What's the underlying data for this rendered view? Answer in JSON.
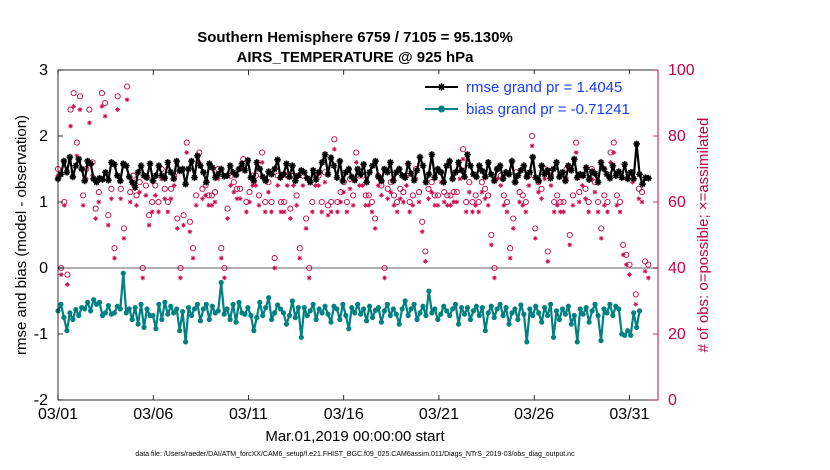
{
  "chart_data": {
    "type": "line",
    "title": "Southern Hemisphere 6759 / 7105 = 95.130%",
    "subtitle": "AIRS_TEMPERATURE @ 925 hPa",
    "xlabel": "Mar.01,2019 00:00:00 start",
    "ylabel": "rmse and bias (model - observation)",
    "y2label": "# of obs: o=possible; ×=assimilated",
    "footnote": "data file: /Users/raeder/DAI/ATM_forcXX/CAM6_setup/f.e21.FHIST_BGC.f09_025.CAM6assim.011/Diags_NTrS_2019-03/obs_diag_output.nc",
    "xlim": [
      0,
      31.5
    ],
    "ylim": [
      -2,
      3
    ],
    "y2lim": [
      0,
      100
    ],
    "zero_line": 0,
    "xtick_labels": [
      "03/01",
      "03/06",
      "03/11",
      "03/16",
      "03/21",
      "03/26",
      "03/31"
    ],
    "xticks": [
      0,
      5,
      10,
      15,
      20,
      25,
      30
    ],
    "yticks": [
      -2,
      -1,
      0,
      1,
      2,
      3
    ],
    "y2ticks": [
      0,
      20,
      40,
      60,
      80,
      100
    ],
    "colors": {
      "rmse": "#000000",
      "bias": "#008080",
      "obs": "#c8004a",
      "zero": "#b0b0b0",
      "legend_text": "#1a3cff"
    },
    "legend": [
      {
        "name": "rmse grand pr = 1.4045",
        "series": "rmse"
      },
      {
        "name": "bias grand pr = -0.71241",
        "series": "bias"
      }
    ],
    "legend_location": "top-right",
    "rmse": [
      1.35,
      1.42,
      1.62,
      1.45,
      1.68,
      1.38,
      1.55,
      1.65,
      1.5,
      1.32,
      1.62,
      1.58,
      1.35,
      1.3,
      1.36,
      1.34,
      1.45,
      1.33,
      1.6,
      1.57,
      1.4,
      1.32,
      1.58,
      1.55,
      1.38,
      1.3,
      1.22,
      1.45,
      1.55,
      1.4,
      1.37,
      1.58,
      1.32,
      1.4,
      1.55,
      1.4,
      1.36,
      1.6,
      1.45,
      1.35,
      1.62,
      1.47,
      1.5,
      1.27,
      1.5,
      1.62,
      1.37,
      1.7,
      1.55,
      1.45,
      1.3,
      1.58,
      1.52,
      1.37,
      1.42,
      1.5,
      1.39,
      1.4,
      1.55,
      1.45,
      1.41,
      1.5,
      1.58,
      1.48,
      1.63,
      1.37,
      1.32,
      1.6,
      1.5,
      1.38,
      1.32,
      1.46,
      1.42,
      1.5,
      1.64,
      1.37,
      1.42,
      1.58,
      1.38,
      1.55,
      1.32,
      1.4,
      1.48,
      1.45,
      1.36,
      1.3,
      1.48,
      1.34,
      1.45,
      1.6,
      1.72,
      1.42,
      1.67,
      1.55,
      1.37,
      1.62,
      1.32,
      1.45,
      1.5,
      1.38,
      1.33,
      1.5,
      1.42,
      1.57,
      1.3,
      1.45,
      1.55,
      1.62,
      1.38,
      1.32,
      1.5,
      1.45,
      1.6,
      1.32,
      1.45,
      1.5,
      1.4,
      1.37,
      1.58,
      1.43,
      1.33,
      1.48,
      1.68,
      1.55,
      1.3,
      1.42,
      1.72,
      1.37,
      1.5,
      1.45,
      1.3,
      1.55,
      1.62,
      1.35,
      1.45,
      1.6,
      1.48,
      1.38,
      1.72,
      1.55,
      1.42,
      1.38,
      1.55,
      1.47,
      1.38,
      1.6,
      1.42,
      1.32,
      1.5,
      1.55,
      1.35,
      1.45,
      1.42,
      1.62,
      1.3,
      1.4,
      1.48,
      1.55,
      1.38,
      1.45,
      1.68,
      1.37,
      1.32,
      1.55,
      1.42,
      1.48,
      1.36,
      1.5,
      1.6,
      1.38,
      1.45,
      1.32,
      1.55,
      1.48,
      1.65,
      1.37,
      1.42,
      1.4,
      1.52,
      1.34,
      1.46,
      1.43,
      1.3,
      1.6,
      1.5,
      1.42,
      1.36,
      1.55,
      1.4,
      1.46,
      1.37,
      1.57,
      1.35,
      1.45,
      1.35,
      1.88,
      1.42,
      1.27,
      1.37,
      1.36
    ],
    "bias": [
      -0.65,
      -0.55,
      -0.75,
      -0.95,
      -0.68,
      -0.78,
      -0.63,
      -0.72,
      -0.6,
      -0.62,
      -0.52,
      -0.65,
      -0.48,
      -0.55,
      -0.52,
      -0.72,
      -0.68,
      -0.57,
      -0.7,
      -0.68,
      -0.58,
      -0.62,
      -0.08,
      -0.68,
      -0.62,
      -0.78,
      -0.6,
      -0.85,
      -0.55,
      -0.9,
      -0.62,
      -0.72,
      -0.72,
      -0.92,
      -0.55,
      -0.78,
      -0.52,
      -0.7,
      -0.58,
      -0.68,
      -0.62,
      -0.95,
      -0.66,
      -1.12,
      -0.6,
      -0.72,
      -0.62,
      -0.55,
      -0.8,
      -0.62,
      -0.55,
      -0.78,
      -0.58,
      -0.68,
      -0.65,
      -0.22,
      -0.7,
      -0.62,
      -0.78,
      -0.55,
      -0.82,
      -0.52,
      -0.68,
      -0.7,
      -0.6,
      -0.72,
      -0.95,
      -0.75,
      -0.52,
      -0.72,
      -0.6,
      -0.45,
      -0.78,
      -0.68,
      -0.56,
      -0.62,
      -0.68,
      -0.85,
      -0.72,
      -0.5,
      -0.75,
      -0.6,
      -1.05,
      -0.6,
      -0.72,
      -0.65,
      -0.55,
      -0.78,
      -0.62,
      -0.68,
      -0.58,
      -0.7,
      -0.82,
      -0.58,
      -0.62,
      -0.78,
      -0.55,
      -0.72,
      -0.92,
      -0.6,
      -0.68,
      -0.55,
      -0.7,
      -0.62,
      -0.8,
      -0.58,
      -0.75,
      -0.64,
      -0.6,
      -0.82,
      -0.65,
      -0.55,
      -0.72,
      -0.62,
      -0.7,
      -0.85,
      -0.62,
      -0.5,
      -0.72,
      -0.62,
      -0.55,
      -0.78,
      -0.68,
      -0.58,
      -0.72,
      -0.35,
      -0.68,
      -0.62,
      -0.78,
      -0.7,
      -0.58,
      -0.65,
      -0.72,
      -0.62,
      -0.55,
      -0.85,
      -0.6,
      -0.7,
      -0.6,
      -0.78,
      -0.65,
      -0.58,
      -0.72,
      -0.6,
      -0.95,
      -0.68,
      -0.58,
      -0.75,
      -0.62,
      -0.55,
      -0.72,
      -0.6,
      -0.85,
      -0.68,
      -0.62,
      -0.78,
      -0.56,
      -0.7,
      -1.12,
      -0.62,
      -0.72,
      -0.58,
      -0.68,
      -0.82,
      -0.6,
      -0.72,
      -0.55,
      -1.05,
      -0.65,
      -0.78,
      -0.62,
      -0.7,
      -0.58,
      -0.85,
      -0.72,
      -1.12,
      -0.62,
      -0.7,
      -0.6,
      -0.82,
      -0.65,
      -0.55,
      -0.72,
      -1.1,
      -0.62,
      -0.68,
      -0.55,
      -0.72,
      -0.58,
      -0.62,
      -1.0,
      -1.02,
      -0.95,
      -1.02,
      -0.68,
      -0.9,
      -0.65
    ],
    "obs_possible": [
      70,
      40,
      60,
      38,
      88,
      93,
      78,
      92,
      62,
      70,
      88,
      72,
      58,
      63,
      93,
      90,
      56,
      64,
      46,
      92,
      64,
      52,
      95,
      63,
      68,
      62,
      66,
      40,
      65,
      56,
      60,
      65,
      60,
      70,
      64,
      60,
      64,
      68,
      55,
      40,
      56,
      78,
      54,
      46,
      62,
      75,
      64,
      65,
      62,
      62,
      63,
      70,
      46,
      40,
      58,
      68,
      66,
      64,
      64,
      73,
      60,
      63,
      68,
      68,
      62,
      75,
      60,
      66,
      60,
      43,
      68,
      60,
      60,
      68,
      58,
      68,
      62,
      46,
      68,
      55,
      40,
      60,
      68,
      68,
      60,
      69,
      59,
      60,
      79,
      60,
      63,
      66,
      60,
      67,
      62,
      75,
      68,
      68,
      62,
      62,
      60,
      55,
      68,
      65,
      40,
      64,
      66,
      62,
      60,
      64,
      63,
      68,
      60,
      62,
      70,
      63,
      54,
      45,
      64,
      66,
      62,
      62,
      69,
      63,
      62,
      62,
      63,
      63,
      70,
      76,
      60,
      66,
      60,
      62,
      60,
      66,
      64,
      62,
      50,
      40,
      70,
      68,
      62,
      60,
      46,
      55,
      69,
      63,
      62,
      60,
      68,
      80,
      52,
      66,
      64,
      70,
      45,
      68,
      60,
      62,
      60,
      60,
      70,
      50,
      62,
      78,
      63,
      68,
      64,
      60,
      70,
      66,
      60,
      52,
      62,
      60,
      75,
      78,
      62,
      60,
      47,
      44,
      41,
      69,
      32,
      64,
      63,
      42,
      41
    ],
    "obs_assimilated": [
      68,
      38,
      59,
      35,
      83,
      89,
      74,
      88,
      59,
      67,
      84,
      68,
      55,
      60,
      89,
      86,
      53,
      61,
      43,
      88,
      61,
      49,
      91,
      60,
      65,
      59,
      63,
      37,
      62,
      53,
      57,
      62,
      57,
      67,
      61,
      57,
      61,
      65,
      52,
      37,
      53,
      75,
      51,
      43,
      59,
      72,
      61,
      62,
      59,
      59,
      60,
      67,
      43,
      37,
      55,
      65,
      63,
      61,
      61,
      70,
      57,
      60,
      65,
      65,
      59,
      72,
      57,
      63,
      57,
      40,
      65,
      57,
      57,
      65,
      55,
      65,
      59,
      43,
      65,
      52,
      37,
      57,
      65,
      65,
      57,
      66,
      56,
      57,
      76,
      57,
      60,
      63,
      57,
      64,
      59,
      72,
      65,
      65,
      59,
      59,
      57,
      52,
      65,
      62,
      37,
      61,
      63,
      59,
      57,
      61,
      60,
      65,
      57,
      59,
      67,
      60,
      51,
      42,
      61,
      63,
      59,
      59,
      66,
      60,
      59,
      59,
      60,
      60,
      67,
      73,
      57,
      63,
      57,
      59,
      57,
      63,
      61,
      59,
      47,
      37,
      67,
      65,
      59,
      57,
      43,
      52,
      66,
      60,
      59,
      57,
      65,
      77,
      49,
      63,
      61,
      67,
      42,
      65,
      57,
      59,
      57,
      57,
      67,
      47,
      59,
      75,
      60,
      65,
      61,
      57,
      67,
      63,
      57,
      49,
      59,
      57,
      72,
      75,
      59,
      57,
      44,
      41,
      38,
      66,
      29,
      61,
      60,
      39,
      37
    ]
  }
}
